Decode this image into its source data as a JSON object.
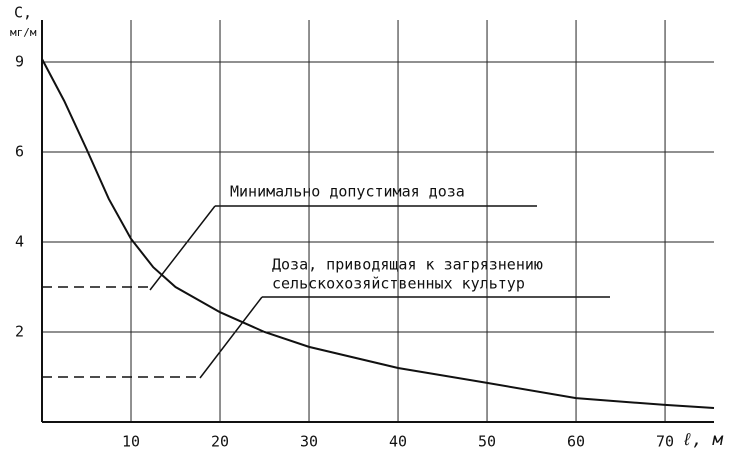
{
  "chart_data": {
    "type": "line",
    "y_label": "С,",
    "y_unit": "мг/м",
    "x_label": "ℓ, м",
    "x": [
      0,
      2.5,
      5,
      7.5,
      10,
      12.5,
      15,
      20,
      25,
      30,
      40,
      50,
      60,
      70,
      75.5
    ],
    "series": [
      {
        "color": "#111111",
        "values": [
          9.1,
          7.7,
          6.1,
          4.96,
          4.07,
          3.44,
          3.0,
          2.44,
          2.0,
          1.67,
          1.2,
          0.87,
          0.53,
          0.38,
          0.31
        ]
      }
    ],
    "xlim": [
      0,
      75.5
    ],
    "xticks": [
      10,
      20,
      30,
      40,
      50,
      60,
      70
    ],
    "ylim": [
      0,
      10.4
    ],
    "yticks": [
      2,
      4,
      6,
      9
    ],
    "grid": true,
    "levels": [
      {
        "lines": [
          "Минимально допустимая доза"
        ],
        "value": 3.0,
        "x_end": 12
      },
      {
        "lines": [
          "Доза, приводящая к загрязнению",
          "сельскохозяйственных культур"
        ],
        "value": 1.0,
        "x_end": 17.6
      }
    ]
  }
}
